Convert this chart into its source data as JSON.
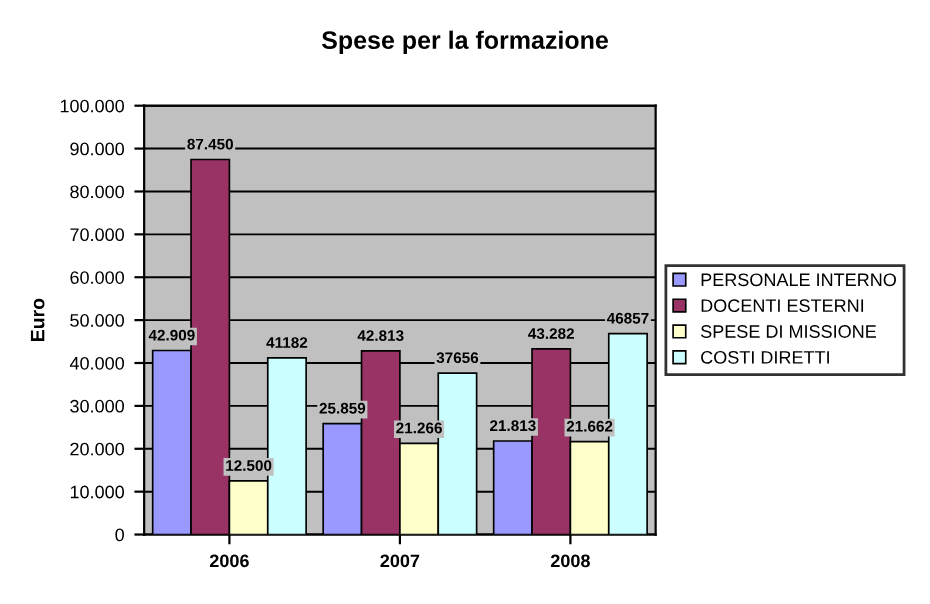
{
  "chart_data": {
    "type": "bar",
    "title": "Spese per la formazione",
    "ylabel": "Euro",
    "categories": [
      "2006",
      "2007",
      "2008"
    ],
    "series": [
      {
        "name": "PERSONALE INTERNO",
        "color": "#9999ff",
        "values": [
          42909,
          25859,
          21813
        ],
        "value_labels": [
          "42.909",
          "25.859",
          "21.813"
        ]
      },
      {
        "name": "DOCENTI ESTERNI",
        "color": "#993366",
        "values": [
          87450,
          42813,
          43282
        ],
        "value_labels": [
          "87.450",
          "42.813",
          "43.282"
        ]
      },
      {
        "name": "SPESE DI MISSIONE",
        "color": "#ffffcc",
        "values": [
          12500,
          21266,
          21662
        ],
        "value_labels": [
          "12.500",
          "21.266",
          "21.662"
        ]
      },
      {
        "name": "COSTI DIRETTI",
        "color": "#ccffff",
        "values": [
          41182,
          37656,
          46857
        ],
        "value_labels": [
          "41182",
          "37656",
          "46857"
        ]
      }
    ],
    "ylim": [
      0,
      100000
    ],
    "yticks": [
      0,
      {
        "value": 10000,
        "label": "10.000"
      },
      {
        "value": 20000,
        "label": "20.000"
      },
      {
        "value": 30000,
        "label": "30.000"
      },
      {
        "value": 40000,
        "label": "40.000"
      },
      {
        "value": 50000,
        "label": "50.000"
      },
      {
        "value": 60000,
        "label": "60.000"
      },
      {
        "value": 70000,
        "label": "70.000"
      },
      {
        "value": 80000,
        "label": "80.000"
      },
      {
        "value": 90000,
        "label": "90.000"
      },
      {
        "value": 100000,
        "label": "100.000"
      }
    ],
    "grid": "y",
    "legend": "right"
  }
}
